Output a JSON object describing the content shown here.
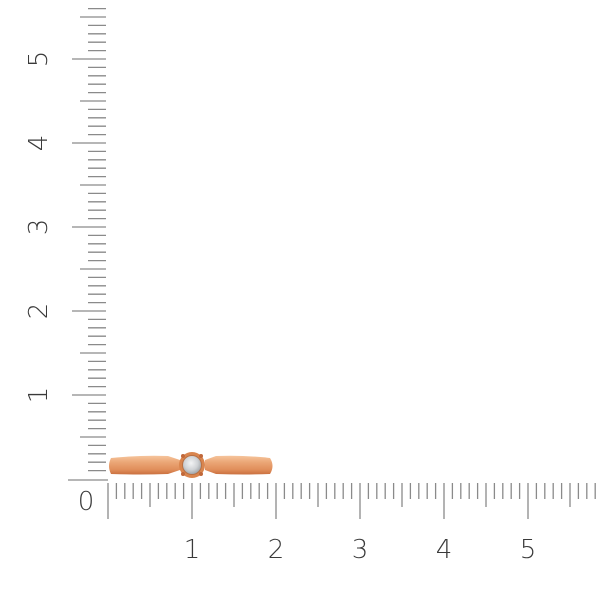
{
  "ruler": {
    "x_labels": [
      "0",
      "1",
      "2",
      "3",
      "4",
      "5"
    ],
    "y_labels": [
      "1",
      "2",
      "3",
      "4",
      "5"
    ],
    "range_max": 5.9,
    "tick_color": "#8a8a8a"
  },
  "product": {
    "metal_color": "#e9a070",
    "stone_color": "#d8dadc"
  }
}
